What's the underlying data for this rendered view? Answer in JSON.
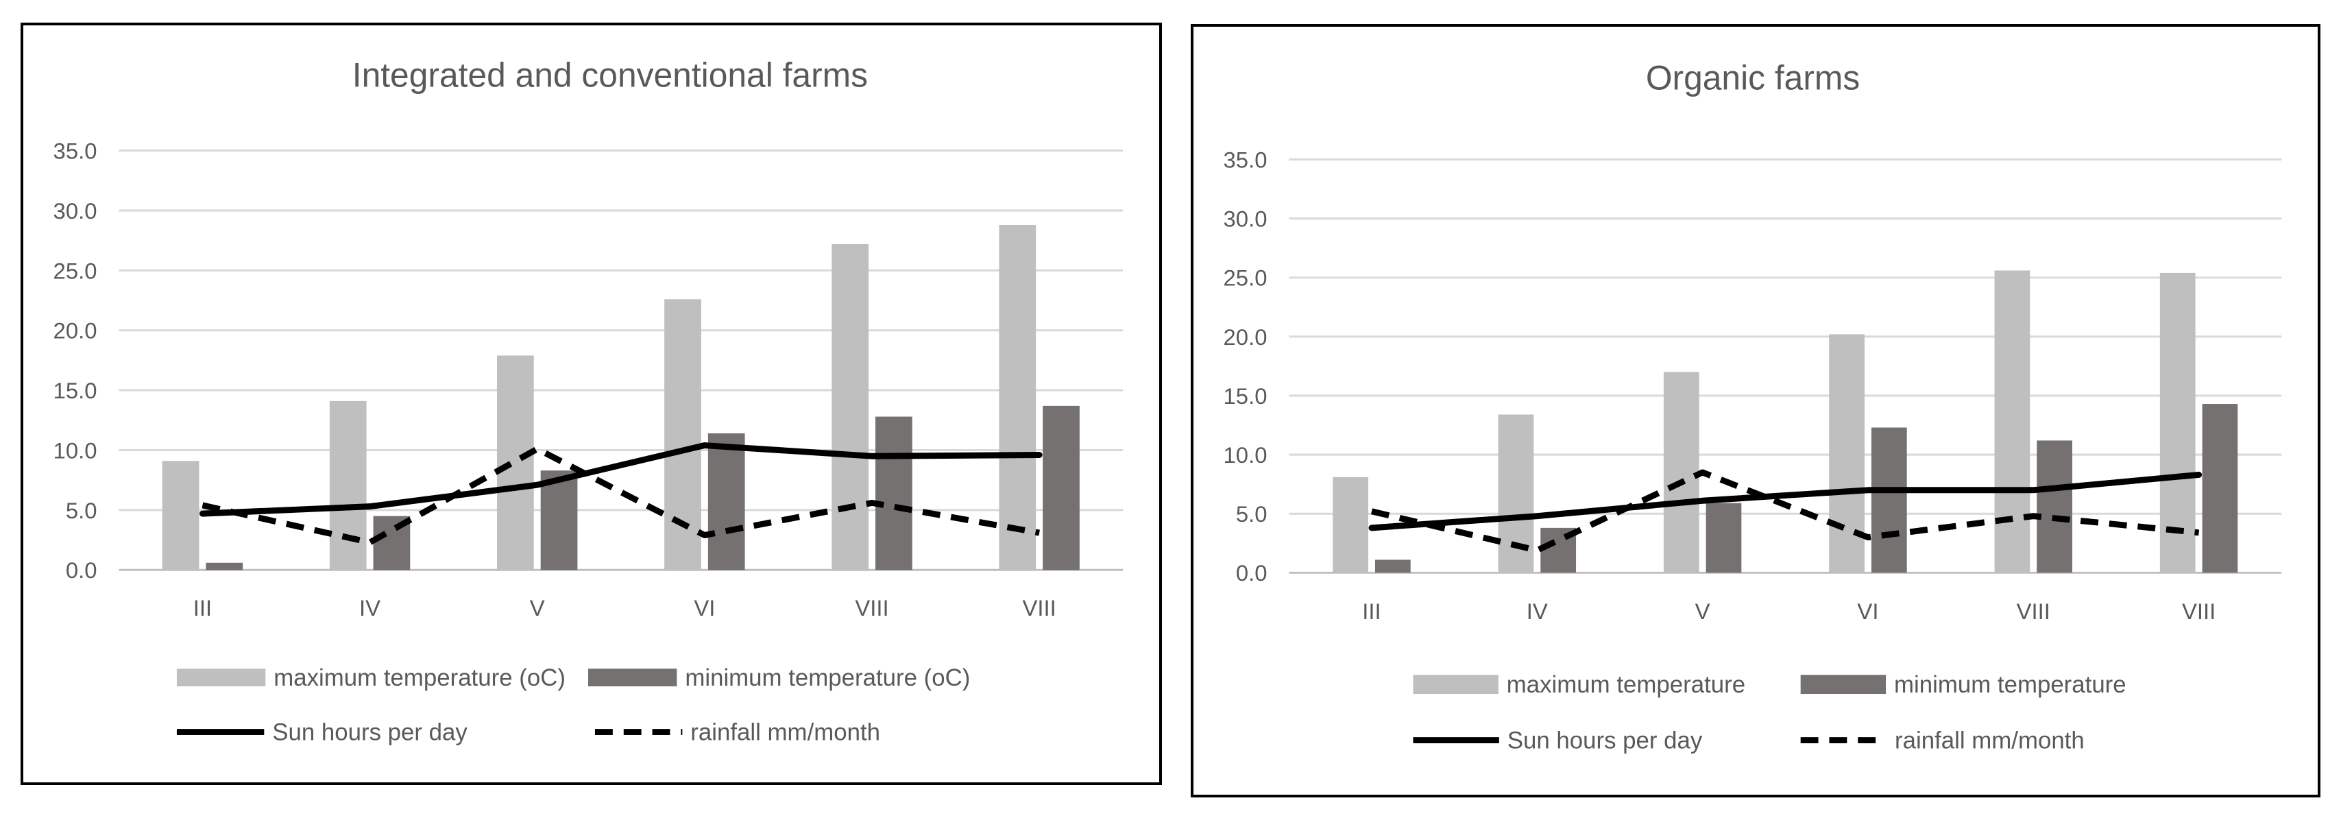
{
  "chart_data": [
    {
      "type": "bar",
      "title": "Integrated and conventional farms",
      "categories": [
        "III",
        "IV",
        "V",
        "VI",
        "VIII",
        "VIII"
      ],
      "yticks": [
        "0.0",
        "5.0",
        "10.0",
        "15.0",
        "20.0",
        "25.0",
        "30.0",
        "35.0"
      ],
      "ylim": [
        0,
        35
      ],
      "grid": true,
      "legend_position": "bottom",
      "bar_series": [
        {
          "name": "maximum temperature (oC)",
          "color": "#bfbfbf",
          "values": [
            9.1,
            14.1,
            17.9,
            22.6,
            27.2,
            28.8
          ]
        },
        {
          "name": "minimum temperature (oC)",
          "color": "#767171",
          "values": [
            0.6,
            4.5,
            8.3,
            11.4,
            12.8,
            13.7
          ]
        }
      ],
      "line_series": [
        {
          "name": "Sun hours per day",
          "style": "solid",
          "color": "#000000",
          "values": [
            4.7,
            5.3,
            7.1,
            10.4,
            9.5,
            9.6
          ]
        },
        {
          "name": "rainfall mm/month",
          "style": "dashed",
          "color": "#000000",
          "values": [
            5.4,
            2.3,
            10.1,
            2.9,
            5.6,
            3.1
          ]
        }
      ]
    },
    {
      "type": "bar",
      "title": "Organic farms",
      "categories": [
        "III",
        "IV",
        "V",
        "VI",
        "VIII",
        "VIII"
      ],
      "yticks": [
        "0.0",
        "5.0",
        "10.0",
        "15.0",
        "20.0",
        "25.0",
        "30.0",
        "35.0"
      ],
      "ylim": [
        0,
        35
      ],
      "grid": true,
      "legend_position": "bottom",
      "bar_series": [
        {
          "name": "maximum temperature",
          "color": "#bfbfbf",
          "values": [
            8.1,
            13.4,
            17.0,
            20.2,
            25.6,
            25.4
          ]
        },
        {
          "name": "minimum temperature",
          "color": "#767171",
          "values": [
            1.1,
            3.8,
            5.9,
            12.3,
            11.2,
            14.3
          ]
        }
      ],
      "line_series": [
        {
          "name": "Sun hours per day",
          "style": "solid",
          "color": "#000000",
          "values": [
            3.8,
            4.8,
            6.1,
            7.0,
            7.0,
            8.3
          ]
        },
        {
          "name": "rainfall mm/month",
          "style": "dashed",
          "color": "#000000",
          "values": [
            5.2,
            1.9,
            8.5,
            3.0,
            4.8,
            3.4
          ]
        }
      ]
    }
  ]
}
